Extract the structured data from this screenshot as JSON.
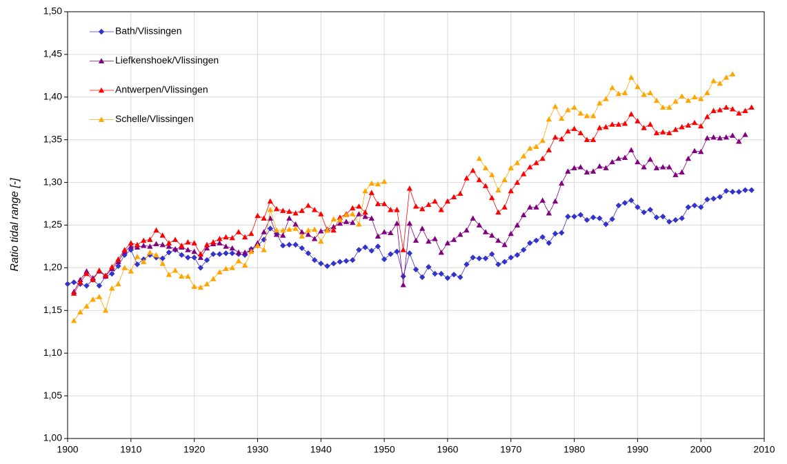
{
  "chart_data": {
    "type": "line",
    "y_label": "Ratio tidal range [-]",
    "grid": true,
    "xlim": [
      1900,
      2010
    ],
    "xticks": [
      1900,
      1910,
      1920,
      1930,
      1940,
      1950,
      1960,
      1970,
      1980,
      1990,
      2000,
      2010
    ],
    "ylim": [
      1.0,
      1.5
    ],
    "yticks": [
      {
        "value": 1.0,
        "label": "1,00"
      },
      {
        "value": 1.05,
        "label": "1,05"
      },
      {
        "value": 1.1,
        "label": "1,10"
      },
      {
        "value": 1.15,
        "label": "1,15"
      },
      {
        "value": 1.2,
        "label": "1,20"
      },
      {
        "value": 1.25,
        "label": "1,25"
      },
      {
        "value": 1.3,
        "label": "1,30"
      },
      {
        "value": 1.35,
        "label": "1,35"
      },
      {
        "value": 1.4,
        "label": "1,40"
      },
      {
        "value": 1.45,
        "label": "1,45"
      },
      {
        "value": 1.5,
        "label": "1,50"
      }
    ],
    "x": [
      1900,
      1901,
      1902,
      1903,
      1904,
      1905,
      1906,
      1907,
      1908,
      1909,
      1910,
      1911,
      1912,
      1913,
      1914,
      1915,
      1916,
      1917,
      1918,
      1919,
      1920,
      1921,
      1922,
      1923,
      1924,
      1925,
      1926,
      1927,
      1928,
      1929,
      1930,
      1931,
      1932,
      1933,
      1934,
      1935,
      1936,
      1937,
      1938,
      1939,
      1940,
      1941,
      1942,
      1943,
      1944,
      1945,
      1946,
      1947,
      1948,
      1949,
      1950,
      1951,
      1952,
      1953,
      1954,
      1955,
      1956,
      1957,
      1958,
      1959,
      1960,
      1961,
      1962,
      1963,
      1964,
      1965,
      1966,
      1967,
      1968,
      1969,
      1970,
      1971,
      1972,
      1973,
      1974,
      1975,
      1976,
      1977,
      1978,
      1979,
      1980,
      1981,
      1982,
      1983,
      1984,
      1985,
      1986,
      1987,
      1988,
      1989,
      1990,
      1991,
      1992,
      1993,
      1994,
      1995,
      1996,
      1997,
      1998,
      1999,
      2000,
      2001,
      2002,
      2003,
      2004,
      2005,
      2006,
      2007,
      2008
    ],
    "series": [
      {
        "name": "Bath/Vlissingen",
        "color": "#3232cc",
        "marker": "diamond",
        "values": [
          1.181,
          1.183,
          1.181,
          1.179,
          1.186,
          1.179,
          1.19,
          1.193,
          1.202,
          1.215,
          1.221,
          1.204,
          1.21,
          1.215,
          1.212,
          1.211,
          1.218,
          1.221,
          1.215,
          1.212,
          1.212,
          1.2,
          1.209,
          1.216,
          1.216,
          1.217,
          1.217,
          1.216,
          1.215,
          1.222,
          1.226,
          1.233,
          1.246,
          1.24,
          1.226,
          1.227,
          1.227,
          1.223,
          1.217,
          1.209,
          1.205,
          1.202,
          1.205,
          1.207,
          1.208,
          1.209,
          1.221,
          1.224,
          1.22,
          1.225,
          1.21,
          1.216,
          1.219,
          1.19,
          1.217,
          1.198,
          1.189,
          1.201,
          1.193,
          1.193,
          1.188,
          1.192,
          1.189,
          1.204,
          1.212,
          1.211,
          1.211,
          1.216,
          1.204,
          1.207,
          1.212,
          1.215,
          1.221,
          1.229,
          1.232,
          1.236,
          1.229,
          1.24,
          1.241,
          1.26,
          1.26,
          1.262,
          1.256,
          1.259,
          1.258,
          1.251,
          1.257,
          1.273,
          1.276,
          1.279,
          1.271,
          1.265,
          1.268,
          1.259,
          1.26,
          1.254,
          1.256,
          1.258,
          1.271,
          1.273,
          1.271,
          1.28,
          1.281,
          1.283,
          1.29,
          1.289,
          1.289,
          1.291,
          1.291
        ]
      },
      {
        "name": "Liefkenshoek/Vlissingen",
        "color": "#800080",
        "marker": "triangle",
        "values": [
          null,
          1.172,
          1.186,
          1.196,
          1.188,
          1.196,
          1.19,
          1.199,
          1.207,
          1.219,
          1.225,
          1.224,
          1.226,
          1.225,
          1.228,
          1.227,
          1.225,
          1.222,
          1.224,
          1.221,
          1.219,
          1.212,
          1.223,
          1.228,
          1.229,
          1.225,
          1.223,
          1.218,
          1.218,
          1.221,
          1.229,
          1.242,
          1.258,
          1.239,
          1.238,
          1.258,
          1.251,
          1.242,
          1.239,
          1.234,
          1.243,
          1.245,
          1.248,
          1.252,
          1.254,
          1.253,
          1.263,
          1.26,
          1.258,
          1.237,
          1.242,
          1.241,
          1.252,
          1.18,
          1.252,
          1.232,
          1.246,
          1.231,
          1.234,
          1.218,
          1.229,
          1.233,
          1.239,
          1.244,
          1.258,
          1.25,
          1.242,
          1.238,
          1.232,
          1.227,
          1.24,
          1.25,
          1.262,
          1.271,
          1.271,
          1.279,
          1.264,
          1.278,
          1.299,
          1.313,
          1.317,
          1.318,
          1.312,
          1.313,
          1.319,
          1.317,
          1.324,
          1.328,
          1.329,
          1.338,
          1.324,
          1.318,
          1.327,
          1.317,
          1.318,
          1.318,
          1.309,
          1.312,
          1.328,
          1.337,
          1.336,
          1.352,
          1.353,
          1.352,
          1.353,
          1.355,
          1.348,
          1.356,
          null
        ]
      },
      {
        "name": "Antwerpen/Vlissingen",
        "color": "#ff0000",
        "marker": "triangle",
        "values": [
          null,
          1.17,
          1.183,
          1.193,
          1.186,
          1.197,
          1.191,
          1.201,
          1.21,
          1.221,
          1.229,
          1.227,
          1.232,
          1.233,
          1.244,
          1.238,
          1.229,
          1.233,
          1.226,
          1.23,
          1.229,
          1.216,
          1.227,
          1.23,
          1.234,
          1.236,
          1.235,
          1.242,
          1.236,
          1.24,
          1.261,
          1.258,
          1.278,
          1.269,
          1.267,
          1.266,
          1.264,
          1.267,
          1.273,
          1.268,
          1.263,
          1.244,
          1.244,
          1.259,
          1.263,
          1.27,
          1.272,
          1.265,
          1.288,
          1.275,
          1.275,
          1.268,
          1.268,
          1.221,
          1.293,
          1.272,
          1.269,
          1.274,
          1.278,
          1.268,
          1.278,
          1.283,
          1.287,
          1.305,
          1.314,
          1.303,
          1.296,
          1.282,
          1.265,
          1.271,
          1.29,
          1.3,
          1.31,
          1.318,
          1.323,
          1.328,
          1.338,
          1.353,
          1.351,
          1.36,
          1.363,
          1.358,
          1.35,
          1.35,
          1.364,
          1.365,
          1.368,
          1.368,
          1.369,
          1.38,
          1.372,
          1.364,
          1.368,
          1.358,
          1.359,
          1.358,
          1.362,
          1.365,
          1.367,
          1.37,
          1.366,
          1.377,
          1.384,
          1.385,
          1.388,
          1.386,
          1.381,
          1.384,
          1.388
        ]
      },
      {
        "name": "Schelle/Vlissingen",
        "color": "#ffa500",
        "marker": "triangle",
        "values": [
          null,
          1.138,
          1.148,
          1.155,
          1.163,
          1.166,
          1.15,
          1.176,
          1.181,
          1.2,
          1.196,
          1.213,
          1.207,
          1.218,
          1.215,
          1.205,
          1.192,
          1.197,
          1.19,
          1.19,
          1.178,
          1.177,
          1.181,
          1.187,
          1.195,
          1.199,
          1.2,
          1.208,
          1.203,
          1.219,
          1.226,
          1.221,
          1.268,
          1.244,
          1.244,
          1.245,
          1.246,
          1.237,
          1.244,
          1.245,
          1.231,
          1.244,
          1.257,
          1.256,
          1.262,
          1.263,
          1.251,
          1.29,
          1.299,
          1.298,
          1.301,
          null,
          null,
          null,
          null,
          null,
          null,
          null,
          null,
          null,
          null,
          null,
          null,
          null,
          null,
          1.328,
          1.317,
          1.309,
          1.291,
          1.303,
          1.317,
          1.323,
          1.331,
          1.34,
          1.342,
          1.349,
          1.374,
          1.389,
          1.375,
          1.385,
          1.388,
          1.381,
          1.378,
          1.378,
          1.393,
          1.398,
          1.411,
          1.404,
          1.405,
          1.423,
          1.412,
          1.403,
          1.405,
          1.396,
          1.388,
          1.388,
          1.395,
          1.401,
          1.396,
          1.4,
          1.398,
          1.405,
          1.419,
          1.416,
          1.423,
          1.427,
          null,
          null,
          null
        ]
      }
    ]
  }
}
